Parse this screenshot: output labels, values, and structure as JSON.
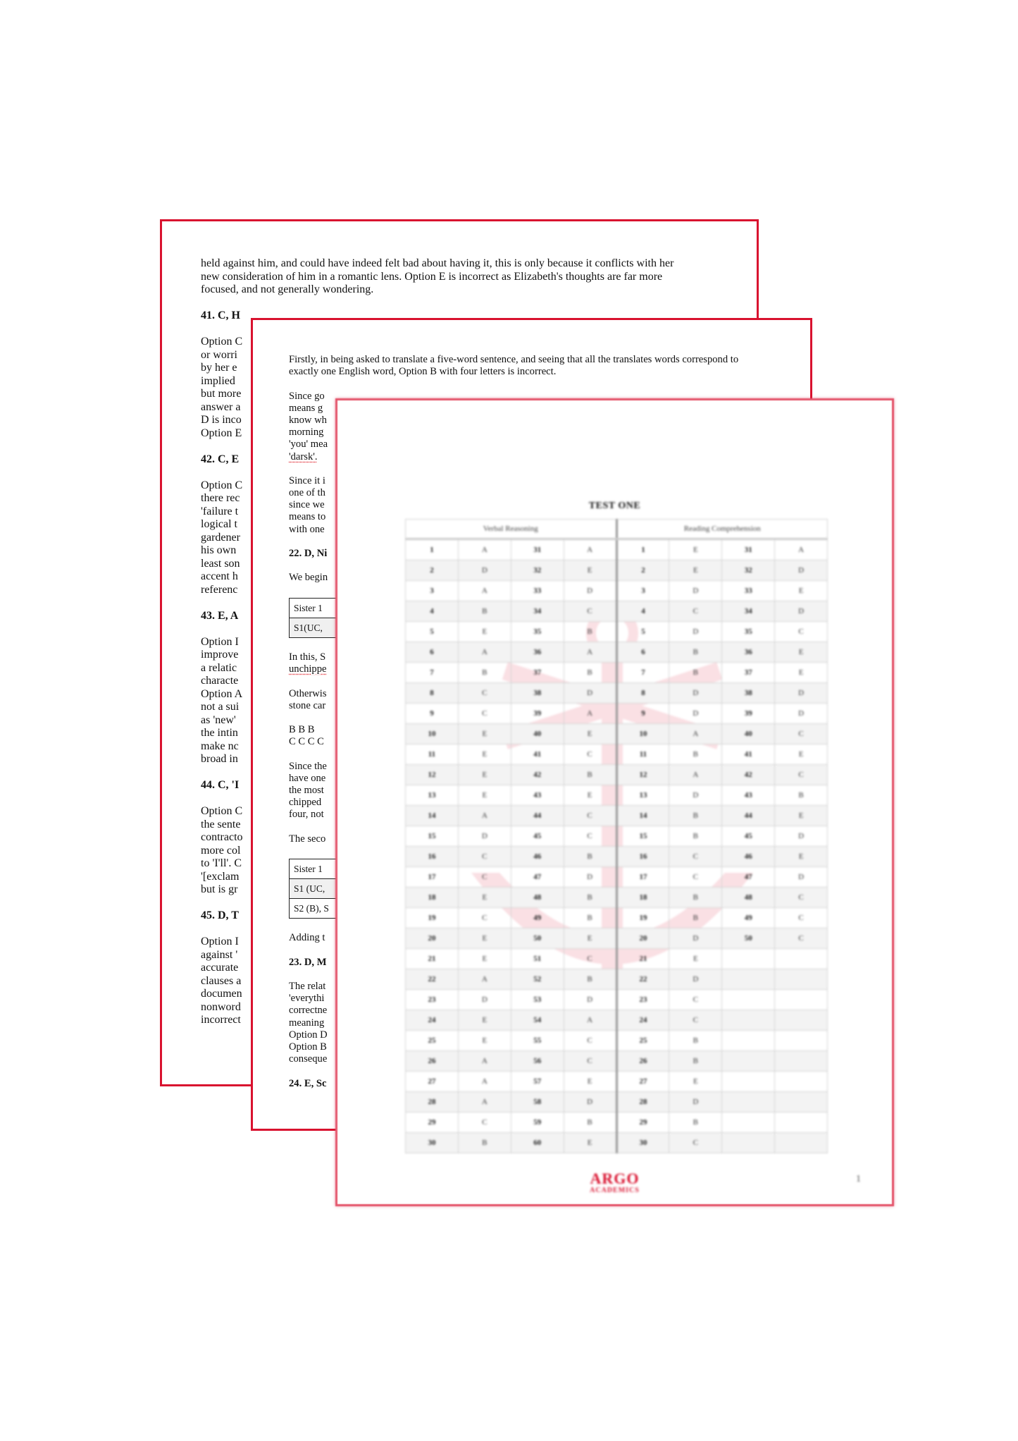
{
  "colors": {
    "border": "#d9122f",
    "brand": "#d9122f"
  },
  "page1": {
    "blocks": [
      {
        "type": "p",
        "lines": [
          "held against him, and could have indeed felt bad about having it, this is only because it conflicts with her",
          "new consideration of him in a romantic lens. Option E is incorrect as Elizabeth's thoughts are far more",
          "focused, and not generally wondering."
        ]
      },
      {
        "type": "h",
        "text": "41. C, H"
      },
      {
        "type": "p",
        "lines": [
          "Option C",
          "or worri",
          "by her e",
          "implied",
          "but more",
          "answer a",
          "D is inco",
          "Option E"
        ]
      },
      {
        "type": "h",
        "text": "42. C, E"
      },
      {
        "type": "p",
        "lines": [
          "Option C",
          "there rec",
          "'failure t",
          "logical t",
          "gardener",
          "his own",
          "least son",
          "accent h",
          "referenc"
        ]
      },
      {
        "type": "h",
        "text": "43. E, A"
      },
      {
        "type": "p",
        "lines": [
          "Option I",
          "improve",
          "a  relatic",
          "characte",
          "Option A",
          "not a sui",
          "as 'new'",
          "the  intin",
          "make nc",
          "broad in"
        ]
      },
      {
        "type": "h",
        "text": "44. C, 'I"
      },
      {
        "type": "p",
        "lines": [
          "Option C",
          "the sente",
          "contracto",
          "more col",
          "to 'I'll'. C",
          "'[exclam",
          "but is gr"
        ]
      },
      {
        "type": "h",
        "text": "45. D, T"
      },
      {
        "type": "p",
        "lines": [
          "Option I",
          "against '",
          "accurate",
          "clauses a",
          "documen",
          "nonword",
          "incorrect"
        ]
      }
    ]
  },
  "page2": {
    "blocks": [
      {
        "type": "p",
        "lines": [
          "Firstly, in being asked to translate a five-word sentence, and seeing that all the translates words correspond to",
          "exactly one English word, Option B with four letters is incorrect."
        ]
      },
      {
        "type": "p",
        "lines": [
          "Since go",
          "means g",
          "know wh",
          "morning",
          "'you' mea",
          "'darsk'."
        ],
        "spell": [
          5
        ]
      },
      {
        "type": "p",
        "lines": [
          "Since it i",
          "one of th",
          "since we",
          "means to",
          "with one"
        ]
      },
      {
        "type": "h",
        "text": "22. D, Ni"
      },
      {
        "type": "p",
        "lines": [
          "We begin"
        ]
      },
      {
        "type": "table",
        "rows": [
          "Sister 1",
          "S1(UC, "
        ]
      },
      {
        "type": "p",
        "lines": [
          "In this, S",
          "unchippe"
        ],
        "spell": [
          1
        ]
      },
      {
        "type": "p",
        "lines": [
          "Otherwis",
          "stone car"
        ]
      },
      {
        "type": "p",
        "lines": [
          "B B B",
          "C C C C"
        ]
      },
      {
        "type": "p",
        "lines": [
          "Since the",
          "have one",
          "the most",
          "chipped",
          "four, not"
        ]
      },
      {
        "type": "p",
        "lines": [
          "The seco"
        ]
      },
      {
        "type": "table",
        "rows": [
          "Sister 1",
          "S1 (UC, ",
          "S2 (B), S"
        ]
      },
      {
        "type": "p",
        "lines": [
          "Adding t"
        ]
      },
      {
        "type": "h",
        "text": "23. D, M"
      },
      {
        "type": "p",
        "lines": [
          "The relat",
          "'everythi",
          "correctne",
          "meaning",
          "Option D",
          "Option B",
          "conseque"
        ]
      },
      {
        "type": "h",
        "text": "24. E, Sc"
      }
    ]
  },
  "page3": {
    "title": "TEST ONE",
    "sections": [
      "Verbal Reasoning",
      "Reading Comprehension"
    ],
    "verbal": [
      [
        "1",
        "A",
        "31",
        "A"
      ],
      [
        "2",
        "D",
        "32",
        "E"
      ],
      [
        "3",
        "A",
        "33",
        "D"
      ],
      [
        "4",
        "B",
        "34",
        "C"
      ],
      [
        "5",
        "E",
        "35",
        "B"
      ],
      [
        "6",
        "A",
        "36",
        "A"
      ],
      [
        "7",
        "B",
        "37",
        "B"
      ],
      [
        "8",
        "C",
        "38",
        "D"
      ],
      [
        "9",
        "C",
        "39",
        "A"
      ],
      [
        "10",
        "E",
        "40",
        "E"
      ],
      [
        "11",
        "E",
        "41",
        "C"
      ],
      [
        "12",
        "E",
        "42",
        "B"
      ],
      [
        "13",
        "E",
        "43",
        "E"
      ],
      [
        "14",
        "A",
        "44",
        "C"
      ],
      [
        "15",
        "D",
        "45",
        "C"
      ],
      [
        "16",
        "C",
        "46",
        "B"
      ],
      [
        "17",
        "C",
        "47",
        "D"
      ],
      [
        "18",
        "E",
        "48",
        "B"
      ],
      [
        "19",
        "C",
        "49",
        "B"
      ],
      [
        "20",
        "E",
        "50",
        "E"
      ],
      [
        "21",
        "E",
        "51",
        "C"
      ],
      [
        "22",
        "A",
        "52",
        "B"
      ],
      [
        "23",
        "D",
        "53",
        "D"
      ],
      [
        "24",
        "E",
        "54",
        "A"
      ],
      [
        "25",
        "E",
        "55",
        "C"
      ],
      [
        "26",
        "A",
        "56",
        "C"
      ],
      [
        "27",
        "A",
        "57",
        "E"
      ],
      [
        "28",
        "A",
        "58",
        "D"
      ],
      [
        "29",
        "C",
        "59",
        "B"
      ],
      [
        "30",
        "B",
        "60",
        "E"
      ]
    ],
    "reading": [
      [
        "1",
        "E",
        "31",
        "A"
      ],
      [
        "2",
        "E",
        "32",
        "D"
      ],
      [
        "3",
        "D",
        "33",
        "E"
      ],
      [
        "4",
        "C",
        "34",
        "D"
      ],
      [
        "5",
        "D",
        "35",
        "C"
      ],
      [
        "6",
        "B",
        "36",
        "E"
      ],
      [
        "7",
        "B",
        "37",
        "E"
      ],
      [
        "8",
        "D",
        "38",
        "D"
      ],
      [
        "9",
        "D",
        "39",
        "D"
      ],
      [
        "10",
        "A",
        "40",
        "C"
      ],
      [
        "11",
        "B",
        "41",
        "E"
      ],
      [
        "12",
        "A",
        "42",
        "C"
      ],
      [
        "13",
        "D",
        "43",
        "B"
      ],
      [
        "14",
        "B",
        "44",
        "E"
      ],
      [
        "15",
        "B",
        "45",
        "D"
      ],
      [
        "16",
        "C",
        "46",
        "E"
      ],
      [
        "17",
        "C",
        "47",
        "D"
      ],
      [
        "18",
        "B",
        "48",
        "C"
      ],
      [
        "19",
        "B",
        "49",
        "C"
      ],
      [
        "20",
        "D",
        "50",
        "C"
      ],
      [
        "21",
        "E",
        "",
        ""
      ],
      [
        "22",
        "D",
        "",
        ""
      ],
      [
        "23",
        "C",
        "",
        ""
      ],
      [
        "24",
        "C",
        "",
        ""
      ],
      [
        "25",
        "B",
        "",
        ""
      ],
      [
        "26",
        "B",
        "",
        ""
      ],
      [
        "27",
        "E",
        "",
        ""
      ],
      [
        "28",
        "D",
        "",
        ""
      ],
      [
        "29",
        "B",
        "",
        ""
      ],
      [
        "30",
        "C",
        "",
        ""
      ]
    ],
    "logo": {
      "line1": "ARGO",
      "line2": "ACADEMICS"
    },
    "page_number": "1"
  }
}
